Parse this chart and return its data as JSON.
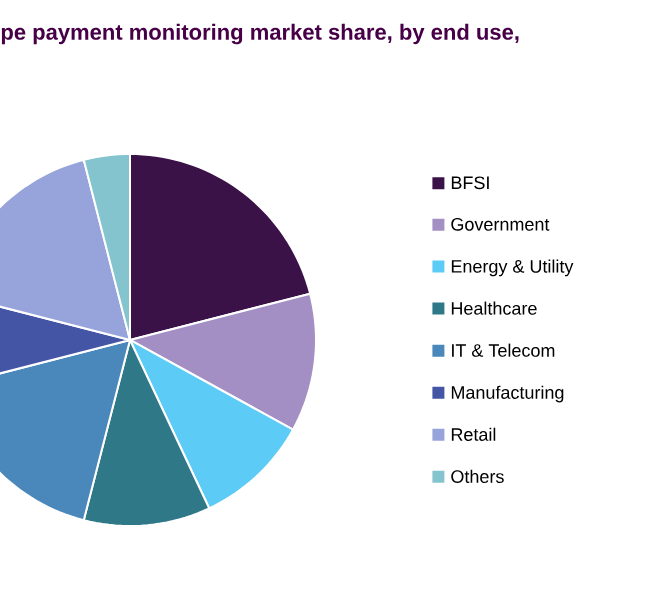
{
  "chart_data": {
    "type": "pie",
    "title": "pe payment monitoring market share, by end use,",
    "categories": [
      "BFSI",
      "Government",
      "Energy & Utility",
      "Healthcare",
      "IT & Telecom",
      "Manufacturing",
      "Retail",
      "Others"
    ],
    "values": [
      21,
      12,
      10,
      11,
      17,
      8,
      17,
      4
    ],
    "colors": [
      "#3a1248",
      "#a48fc4",
      "#5ccbf5",
      "#2f7888",
      "#4a88bb",
      "#4555a5",
      "#97a4dc",
      "#84c4cf"
    ],
    "legend": "right"
  }
}
